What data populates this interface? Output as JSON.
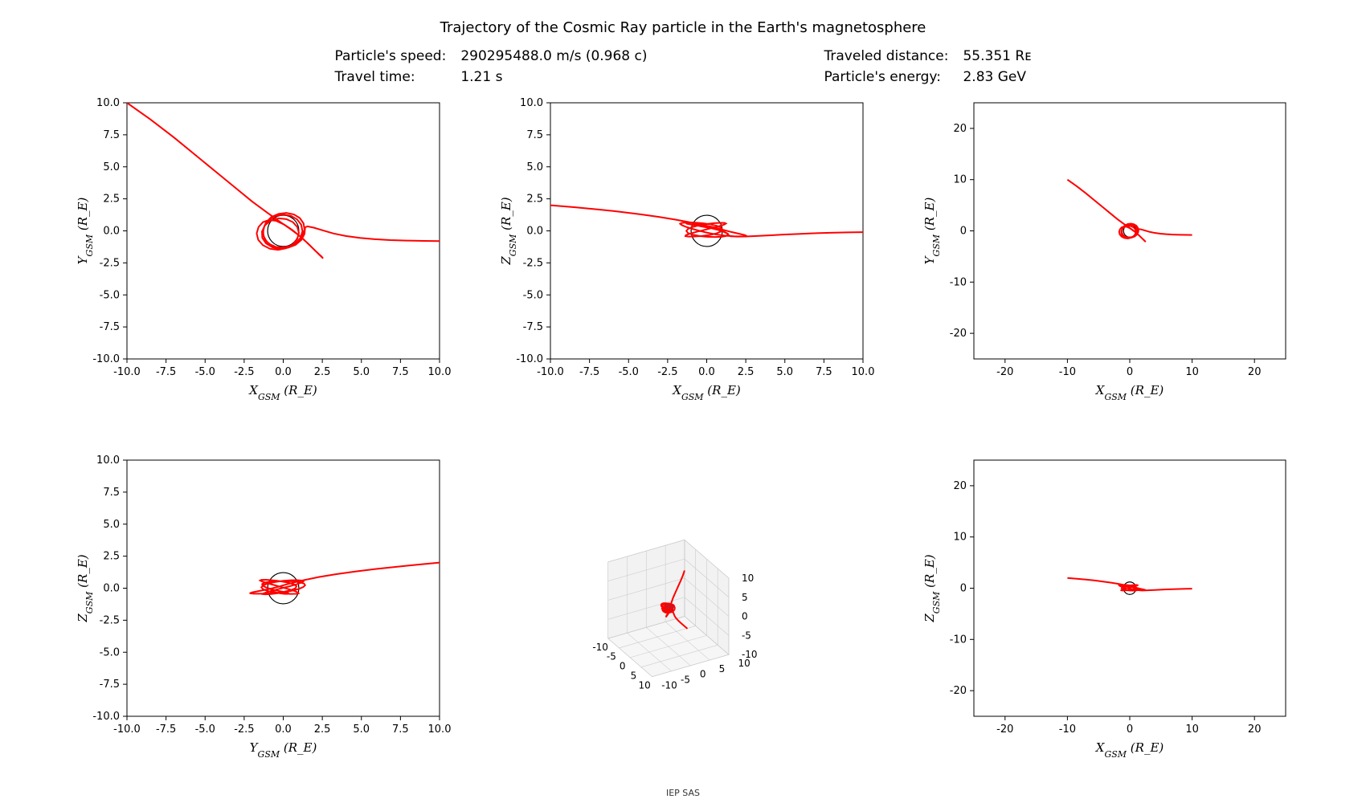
{
  "title": "Trajectory of the Cosmic Ray particle in the Earth's magnetosphere",
  "info": {
    "left": {
      "speed_label": "Particle's speed:",
      "speed_value": "290295488.0 m/s (0.968 c)",
      "time_label": "Travel time:",
      "time_value": "1.21 s"
    },
    "right": {
      "distance_label": "Traveled distance:",
      "distance_value": "55.351 Rᴇ",
      "energy_label": "Particle's energy:",
      "energy_value": "2.83 GeV"
    }
  },
  "footer": "IEP SAS",
  "style": {
    "line_color": "#ff0000",
    "line_width": 2.0,
    "earth_stroke": "#000000",
    "earth_fill_2d": "none",
    "earth_fill_3d": "#1f5d8a",
    "earth_radius_re": 1.0,
    "grid_color": "#dddddd",
    "spine_color": "#000000",
    "tick_color": "#000000",
    "bg_color": "#ffffff",
    "tick_fontsize": 13,
    "label_fontsize": 15,
    "title_fontsize": 18,
    "info_fontsize": 17
  },
  "trajectory_3d": [
    [
      -10.0,
      10.0,
      2.0
    ],
    [
      -8.5,
      8.7,
      1.85
    ],
    [
      -7.0,
      7.3,
      1.68
    ],
    [
      -5.6,
      5.9,
      1.5
    ],
    [
      -4.3,
      4.6,
      1.3
    ],
    [
      -3.1,
      3.4,
      1.1
    ],
    [
      -2.0,
      2.3,
      0.88
    ],
    [
      -1.0,
      1.4,
      0.65
    ],
    [
      -0.2,
      0.7,
      0.45
    ],
    [
      0.45,
      0.15,
      0.28
    ],
    [
      1.0,
      -0.35,
      0.1
    ],
    [
      1.55,
      -0.95,
      -0.08
    ],
    [
      2.05,
      -1.55,
      -0.22
    ],
    [
      2.45,
      -2.0,
      -0.33
    ],
    [
      2.55,
      -2.15,
      -0.4
    ],
    [
      2.3,
      -1.85,
      -0.43
    ],
    [
      1.8,
      -1.25,
      -0.43
    ],
    [
      1.2,
      -0.55,
      -0.38
    ],
    [
      0.6,
      0.05,
      -0.28
    ],
    [
      0.05,
      0.5,
      -0.15
    ],
    [
      -0.45,
      0.78,
      0.0
    ],
    [
      -0.9,
      0.85,
      0.15
    ],
    [
      -1.3,
      0.68,
      0.3
    ],
    [
      -1.58,
      0.3,
      0.44
    ],
    [
      -1.7,
      -0.2,
      0.55
    ],
    [
      -1.6,
      -0.7,
      0.62
    ],
    [
      -1.3,
      -1.12,
      0.66
    ],
    [
      -0.85,
      -1.4,
      0.65
    ],
    [
      -0.32,
      -1.48,
      0.6
    ],
    [
      0.2,
      -1.35,
      0.52
    ],
    [
      0.62,
      -1.05,
      0.4
    ],
    [
      0.9,
      -0.62,
      0.26
    ],
    [
      1.0,
      -0.15,
      0.1
    ],
    [
      0.9,
      0.3,
      -0.06
    ],
    [
      0.62,
      0.68,
      -0.2
    ],
    [
      0.2,
      0.92,
      -0.32
    ],
    [
      -0.3,
      0.98,
      -0.4
    ],
    [
      -0.78,
      0.82,
      -0.44
    ],
    [
      -1.16,
      0.45,
      -0.45
    ],
    [
      -1.36,
      -0.05,
      -0.41
    ],
    [
      -1.34,
      -0.55,
      -0.34
    ],
    [
      -1.1,
      -0.98,
      -0.23
    ],
    [
      -0.7,
      -1.28,
      -0.09
    ],
    [
      -0.2,
      -1.4,
      0.06
    ],
    [
      0.32,
      -1.3,
      0.22
    ],
    [
      0.78,
      -1.0,
      0.36
    ],
    [
      1.1,
      -0.55,
      0.48
    ],
    [
      1.23,
      -0.03,
      0.57
    ],
    [
      1.15,
      0.48,
      0.62
    ],
    [
      0.88,
      0.9,
      0.63
    ],
    [
      0.48,
      1.18,
      0.6
    ],
    [
      0.0,
      1.28,
      0.53
    ],
    [
      -0.5,
      1.16,
      0.43
    ],
    [
      -0.92,
      0.85,
      0.3
    ],
    [
      -1.2,
      0.4,
      0.15
    ],
    [
      -1.3,
      -0.12,
      -0.01
    ],
    [
      -1.2,
      -0.62,
      -0.17
    ],
    [
      -0.9,
      -1.02,
      -0.3
    ],
    [
      -0.48,
      -1.25,
      -0.4
    ],
    [
      0.02,
      -1.3,
      -0.46
    ],
    [
      0.52,
      -1.15,
      -0.48
    ],
    [
      0.94,
      -0.84,
      -0.46
    ],
    [
      1.24,
      -0.4,
      -0.4
    ],
    [
      1.36,
      0.1,
      -0.31
    ],
    [
      1.3,
      0.58,
      -0.19
    ],
    [
      1.06,
      1.0,
      -0.06
    ],
    [
      0.68,
      1.28,
      0.09
    ],
    [
      0.2,
      1.4,
      0.23
    ],
    [
      -0.3,
      1.33,
      0.36
    ],
    [
      -0.76,
      1.08,
      0.46
    ],
    [
      -1.1,
      0.66,
      0.53
    ],
    [
      -1.28,
      0.15,
      0.56
    ],
    [
      -1.27,
      -0.38,
      0.55
    ],
    [
      -1.06,
      -0.84,
      0.51
    ],
    [
      -0.7,
      -1.18,
      0.43
    ],
    [
      -0.22,
      -1.35,
      0.32
    ],
    [
      0.3,
      -1.32,
      0.2
    ],
    [
      0.78,
      -1.1,
      0.06
    ],
    [
      1.15,
      -0.72,
      -0.09
    ],
    [
      1.36,
      -0.24,
      -0.23
    ],
    [
      1.4,
      0.28,
      -0.35
    ],
    [
      1.55,
      0.35,
      -0.42
    ],
    [
      1.95,
      0.25,
      -0.45
    ],
    [
      2.5,
      0.05,
      -0.44
    ],
    [
      3.2,
      -0.2,
      -0.4
    ],
    [
      4.0,
      -0.4,
      -0.35
    ],
    [
      4.9,
      -0.55,
      -0.29
    ],
    [
      5.85,
      -0.65,
      -0.24
    ],
    [
      6.85,
      -0.72,
      -0.19
    ],
    [
      7.9,
      -0.76,
      -0.15
    ],
    [
      9.0,
      -0.78,
      -0.12
    ],
    [
      10.0,
      -0.8,
      -0.1
    ]
  ],
  "panels": {
    "p11": {
      "xlabel": "X_{GSM} (R_E)",
      "ylabel": "Y_{GSM} (R_E)",
      "xlim": [
        -10,
        10
      ],
      "ylim": [
        -10,
        10
      ],
      "xticks": [
        -10.0,
        -7.5,
        -5.0,
        -2.5,
        0.0,
        2.5,
        5.0,
        7.5,
        10.0
      ],
      "yticks": [
        -10.0,
        -7.5,
        -5.0,
        -2.5,
        0.0,
        2.5,
        5.0,
        7.5,
        10.0
      ],
      "proj": [
        0,
        1
      ]
    },
    "p12": {
      "xlabel": "X_{GSM} (R_E)",
      "ylabel": "Z_{GSM} (R_E)",
      "xlim": [
        -10,
        10
      ],
      "ylim": [
        -10,
        10
      ],
      "xticks": [
        -10.0,
        -7.5,
        -5.0,
        -2.5,
        0.0,
        2.5,
        5.0,
        7.5,
        10.0
      ],
      "yticks": [
        -10.0,
        -7.5,
        -5.0,
        -2.5,
        0.0,
        2.5,
        5.0,
        7.5,
        10.0
      ],
      "proj": [
        0,
        2
      ]
    },
    "p13": {
      "xlabel": "X_{GSM} (R_E)",
      "ylabel": "Y_{GSM} (R_E)",
      "xlim": [
        -25,
        25
      ],
      "ylim": [
        -25,
        25
      ],
      "xticks": [
        -20,
        -10,
        0,
        10,
        20
      ],
      "yticks": [
        -20,
        -10,
        0,
        10,
        20
      ],
      "proj": [
        0,
        1
      ]
    },
    "p21": {
      "xlabel": "Y_{GSM} (R_E)",
      "ylabel": "Z_{GSM} (R_E)",
      "xlim": [
        -10,
        10
      ],
      "ylim": [
        -10,
        10
      ],
      "xticks": [
        -10.0,
        -7.5,
        -5.0,
        -2.5,
        0.0,
        2.5,
        5.0,
        7.5,
        10.0
      ],
      "yticks": [
        -10.0,
        -7.5,
        -5.0,
        -2.5,
        0.0,
        2.5,
        5.0,
        7.5,
        10.0
      ],
      "proj": [
        1,
        2
      ]
    },
    "p22_3d": {
      "xlim": [
        -10,
        10
      ],
      "ylim": [
        -10,
        10
      ],
      "zlim": [
        -10,
        10
      ],
      "xticks": [
        -10,
        -5,
        0,
        5,
        10
      ],
      "yticks": [
        -10,
        -5,
        0,
        5,
        10
      ],
      "zticks": [
        -10,
        -5,
        0,
        5,
        10
      ]
    },
    "p23": {
      "xlabel": "X_{GSM} (R_E)",
      "ylabel": "Z_{GSM} (R_E)",
      "xlim": [
        -25,
        25
      ],
      "ylim": [
        -25,
        25
      ],
      "xticks": [
        -20,
        -10,
        0,
        10,
        20
      ],
      "yticks": [
        -20,
        -10,
        0,
        10,
        20
      ],
      "proj": [
        0,
        2
      ]
    }
  }
}
